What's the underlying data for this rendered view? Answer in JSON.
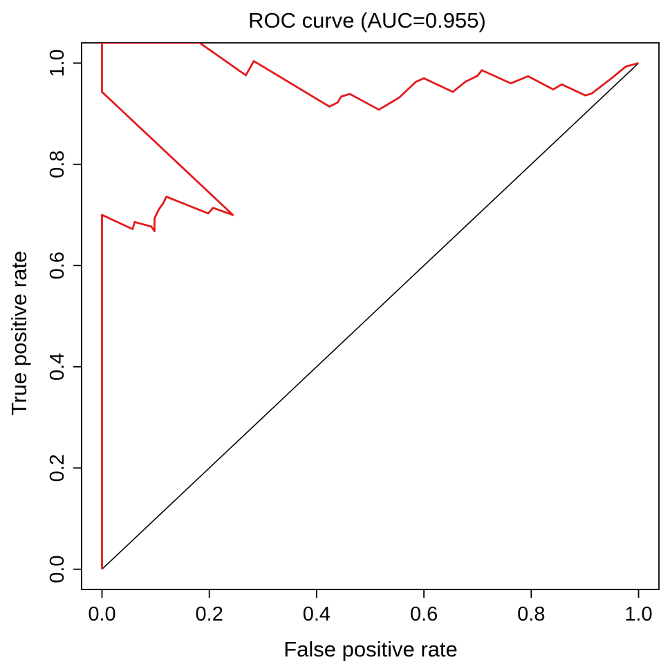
{
  "chart_data": {
    "type": "line",
    "title": "ROC curve (AUC=0.955)",
    "xlabel": "False positive rate",
    "ylabel": "True positive rate",
    "xlim": [
      -0.038,
      1.038
    ],
    "ylim": [
      -0.04,
      1.04
    ],
    "xticks": [
      "0.0",
      "0.2",
      "0.4",
      "0.6",
      "0.8",
      "1.0"
    ],
    "yticks": [
      "0.0",
      "0.2",
      "0.4",
      "0.6",
      "0.8",
      "1.0"
    ],
    "grid": false,
    "legend": "none",
    "series": [
      {
        "color": "#e31a1c",
        "points": [
          [
            0.0,
            0.0
          ],
          [
            0.0,
            0.7
          ],
          [
            0.057,
            0.672
          ],
          [
            0.061,
            0.686
          ],
          [
            0.092,
            0.677
          ],
          [
            0.098,
            0.668
          ],
          [
            0.098,
            0.693
          ],
          [
            0.106,
            0.711
          ],
          [
            0.114,
            0.723
          ],
          [
            0.12,
            0.736
          ],
          [
            0.198,
            0.703
          ],
          [
            0.207,
            0.714
          ],
          [
            0.244,
            0.7
          ],
          [
            0.0,
            0.943
          ],
          [
            0.0,
            1.04
          ],
          [
            0.159,
            1.04
          ],
          [
            0.159,
            1.04
          ],
          [
            0.167,
            1.04
          ],
          [
            0.182,
            1.04
          ],
          [
            0.268,
            0.976
          ],
          [
            0.283,
            1.004
          ],
          [
            0.424,
            0.914
          ],
          [
            0.439,
            0.922
          ],
          [
            0.446,
            0.934
          ],
          [
            0.462,
            0.939
          ],
          [
            0.516,
            0.908
          ],
          [
            0.532,
            0.918
          ],
          [
            0.554,
            0.932
          ],
          [
            0.585,
            0.963
          ],
          [
            0.6,
            0.97
          ],
          [
            0.654,
            0.943
          ],
          [
            0.677,
            0.963
          ],
          [
            0.7,
            0.975
          ],
          [
            0.708,
            0.986
          ],
          [
            0.762,
            0.96
          ],
          [
            0.794,
            0.974
          ],
          [
            0.841,
            0.948
          ],
          [
            0.857,
            0.958
          ],
          [
            0.901,
            0.936
          ],
          [
            0.913,
            0.94
          ],
          [
            0.952,
            0.972
          ],
          [
            0.976,
            0.993
          ],
          [
            1.0,
            1.0
          ]
        ]
      },
      {
        "color": "#000000",
        "points": [
          [
            0.0,
            0.0
          ],
          [
            1.0,
            1.0
          ]
        ]
      }
    ]
  }
}
